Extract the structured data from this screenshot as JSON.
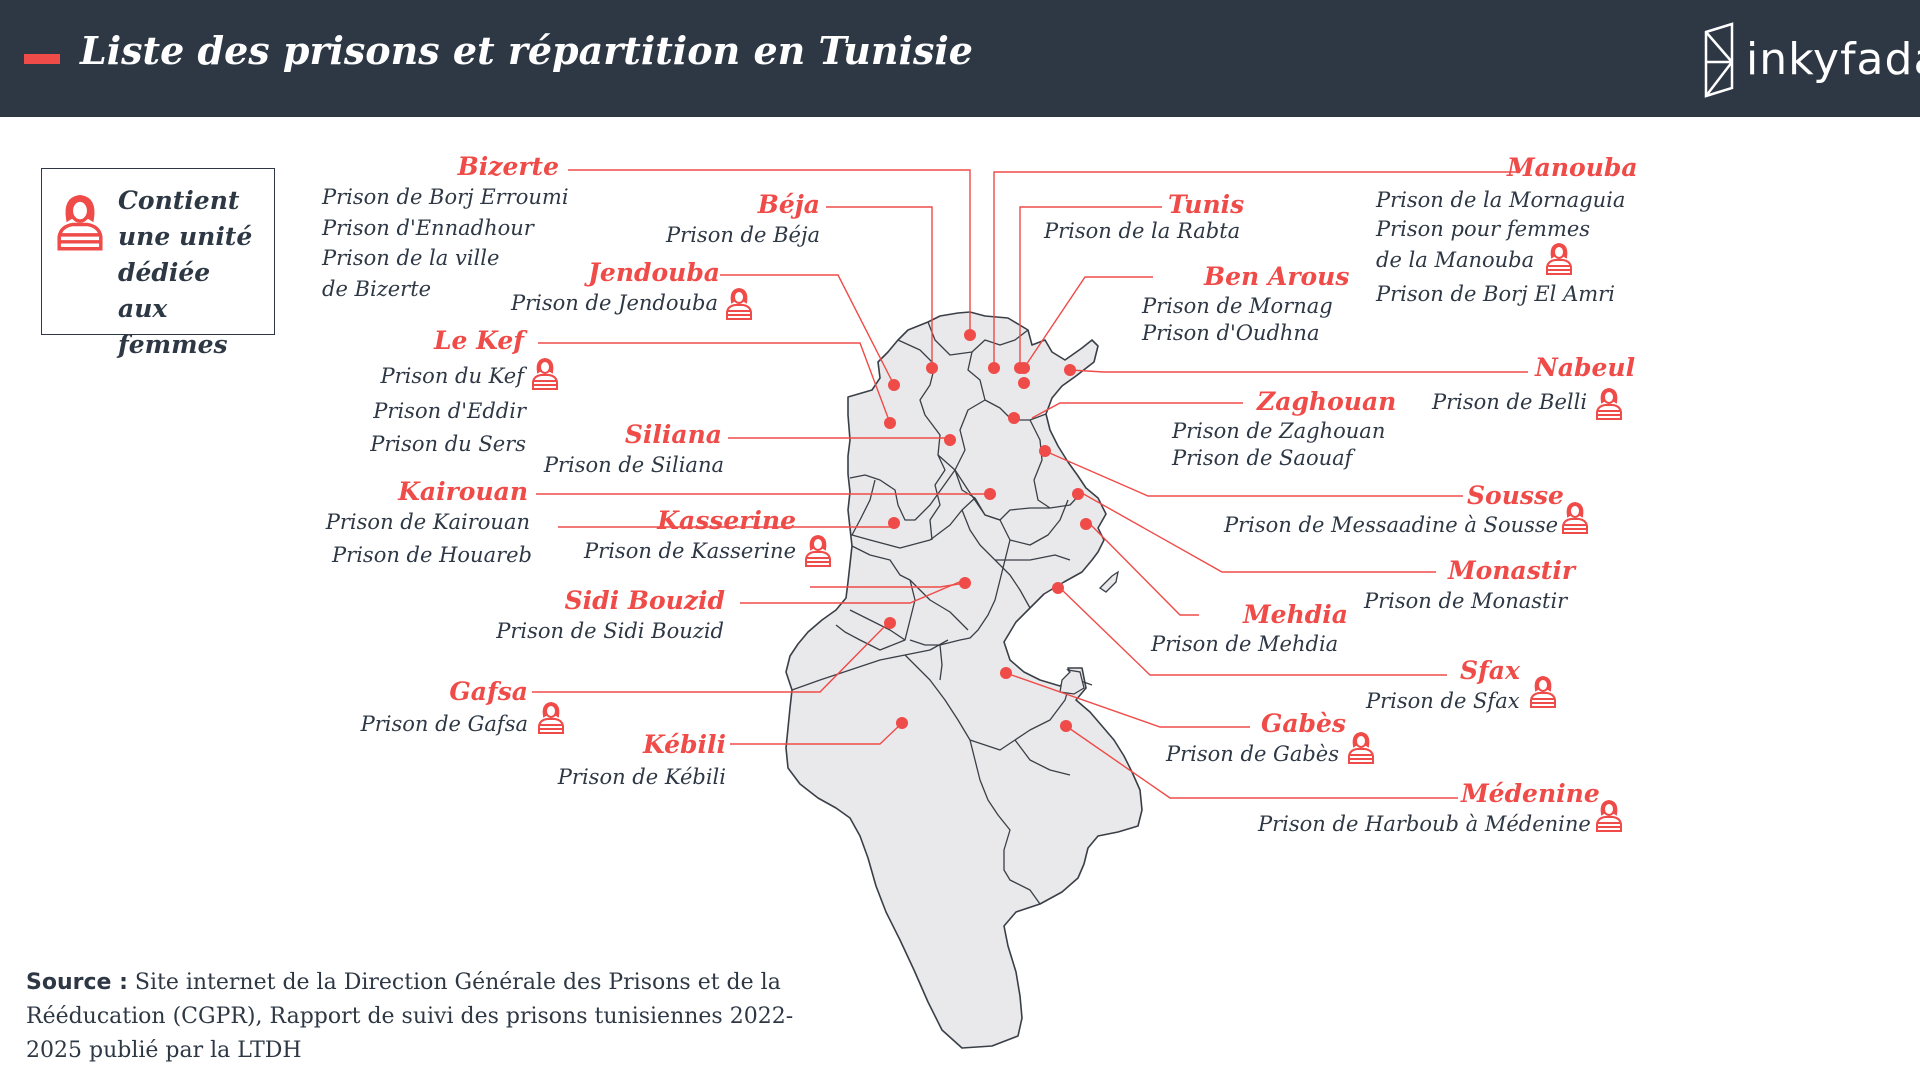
{
  "title": "Liste des prisons et répartition en Tunisie",
  "brand": "inkyfada",
  "colors": {
    "header": "#2e3845",
    "accent": "#ef4b48",
    "land": "#e9e9eb",
    "text": "#2e3845"
  },
  "legend": {
    "icon": "woman-icon",
    "text": "Contient une unité dédiée aux femmes"
  },
  "gouvernorats": [
    {
      "name": "Bizerte",
      "prisons": [
        "Prison de Borj Erroumi",
        "Prison d'Ennadhour",
        "Prison de la ville",
        "de Bizerte"
      ],
      "women_unit": false
    },
    {
      "name": "Béja",
      "prisons": [
        "Prison de Béja"
      ],
      "women_unit": false
    },
    {
      "name": "Jendouba",
      "prisons": [
        "Prison de Jendouba"
      ],
      "women_unit": true
    },
    {
      "name": "Le Kef",
      "prisons": [
        "Prison du Kef",
        "Prison d'Eddir",
        "Prison du Sers"
      ],
      "women_unit": true
    },
    {
      "name": "Siliana",
      "prisons": [
        "Prison de Siliana"
      ],
      "women_unit": false
    },
    {
      "name": "Kairouan",
      "prisons": [
        "Prison de Kairouan",
        "Prison de Houareb"
      ],
      "women_unit": false
    },
    {
      "name": "Kasserine",
      "prisons": [
        "Prison de Kasserine"
      ],
      "women_unit": true
    },
    {
      "name": "Sidi Bouzid",
      "prisons": [
        "Prison de Sidi Bouzid"
      ],
      "women_unit": false
    },
    {
      "name": "Gafsa",
      "prisons": [
        "Prison de Gafsa"
      ],
      "women_unit": true
    },
    {
      "name": "Kébili",
      "prisons": [
        "Prison de Kébili"
      ],
      "women_unit": false
    },
    {
      "name": "Tunis",
      "prisons": [
        "Prison de la Rabta"
      ],
      "women_unit": false
    },
    {
      "name": "Ben Arous",
      "prisons": [
        "Prison de Mornag",
        "Prison d'Oudhna"
      ],
      "women_unit": false
    },
    {
      "name": "Manouba",
      "prisons": [
        "Prison de la Mornaguia",
        "Prison pour femmes",
        "de la Manouba",
        "Prison de Borj El Amri"
      ],
      "women_unit": true
    },
    {
      "name": "Nabeul",
      "prisons": [
        "Prison de Belli"
      ],
      "women_unit": true
    },
    {
      "name": "Zaghouan",
      "prisons": [
        "Prison de Zaghouan",
        "Prison de Saouaf"
      ],
      "women_unit": false
    },
    {
      "name": "Sousse",
      "prisons": [
        "Prison de Messaadine à Sousse"
      ],
      "women_unit": true
    },
    {
      "name": "Monastir",
      "prisons": [
        "Prison de Monastir"
      ],
      "women_unit": false
    },
    {
      "name": "Mehdia",
      "prisons": [
        "Prison de Mehdia"
      ],
      "women_unit": false
    },
    {
      "name": "Sfax",
      "prisons": [
        "Prison de Sfax"
      ],
      "women_unit": true
    },
    {
      "name": "Gabès",
      "prisons": [
        "Prison de Gabès"
      ],
      "women_unit": true
    },
    {
      "name": "Médenine",
      "prisons": [
        "Prison de Harboub à Médenine"
      ],
      "women_unit": true
    }
  ],
  "source": {
    "label": "Source :",
    "text": "Site internet de la Direction Générale des Prisons et de la Rééducation (CGPR), Rapport de suivi des prisons tunisiennes 2022-2025 publié par la LTDH"
  }
}
